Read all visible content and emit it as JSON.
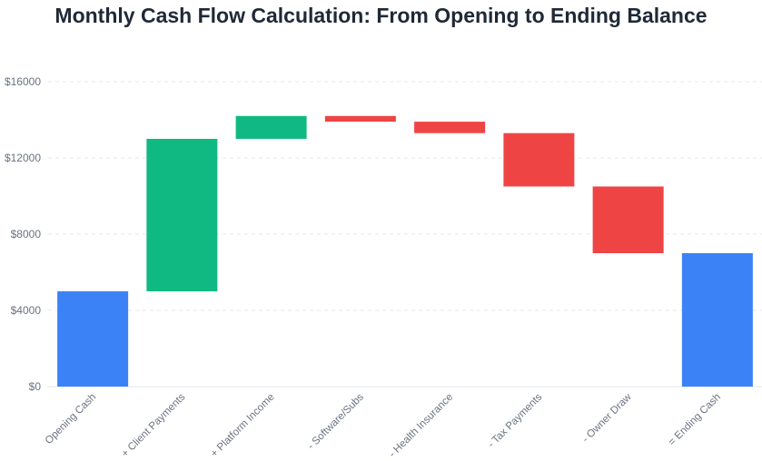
{
  "chart_data": {
    "type": "bar",
    "subtype": "waterfall",
    "title": "Monthly Cash Flow Calculation: From Opening to Ending Balance",
    "xlabel": "",
    "ylabel": "",
    "ylim": [
      0,
      16000
    ],
    "yticks": [
      0,
      4000,
      8000,
      12000,
      16000
    ],
    "ytick_labels": [
      "$0",
      "$4000",
      "$8000",
      "$12000",
      "$16000"
    ],
    "grid": true,
    "legend": "none",
    "colors": {
      "total": "#3b82f6",
      "increase": "#10b981",
      "decrease": "#ef4444",
      "grid": "#e5e7eb"
    },
    "categories": [
      "Opening Cash",
      "+ Client Payments",
      "+ Platform Income",
      "- Software/Subs",
      "- Health Insurance",
      "- Tax Payments",
      "- Owner Draw",
      "= Ending Cash"
    ],
    "bars": [
      {
        "label": "Opening Cash",
        "kind": "total",
        "start": 0,
        "end": 5000
      },
      {
        "label": "+ Client Payments",
        "kind": "increase",
        "start": 5000,
        "end": 13000
      },
      {
        "label": "+ Platform Income",
        "kind": "increase",
        "start": 13000,
        "end": 14200
      },
      {
        "label": "- Software/Subs",
        "kind": "decrease",
        "start": 14200,
        "end": 13900
      },
      {
        "label": "- Health Insurance",
        "kind": "decrease",
        "start": 13900,
        "end": 13300
      },
      {
        "label": "- Tax Payments",
        "kind": "decrease",
        "start": 13300,
        "end": 10500
      },
      {
        "label": "- Owner Draw",
        "kind": "decrease",
        "start": 10500,
        "end": 7000
      },
      {
        "label": "= Ending Cash",
        "kind": "total",
        "start": 0,
        "end": 7000
      }
    ]
  }
}
